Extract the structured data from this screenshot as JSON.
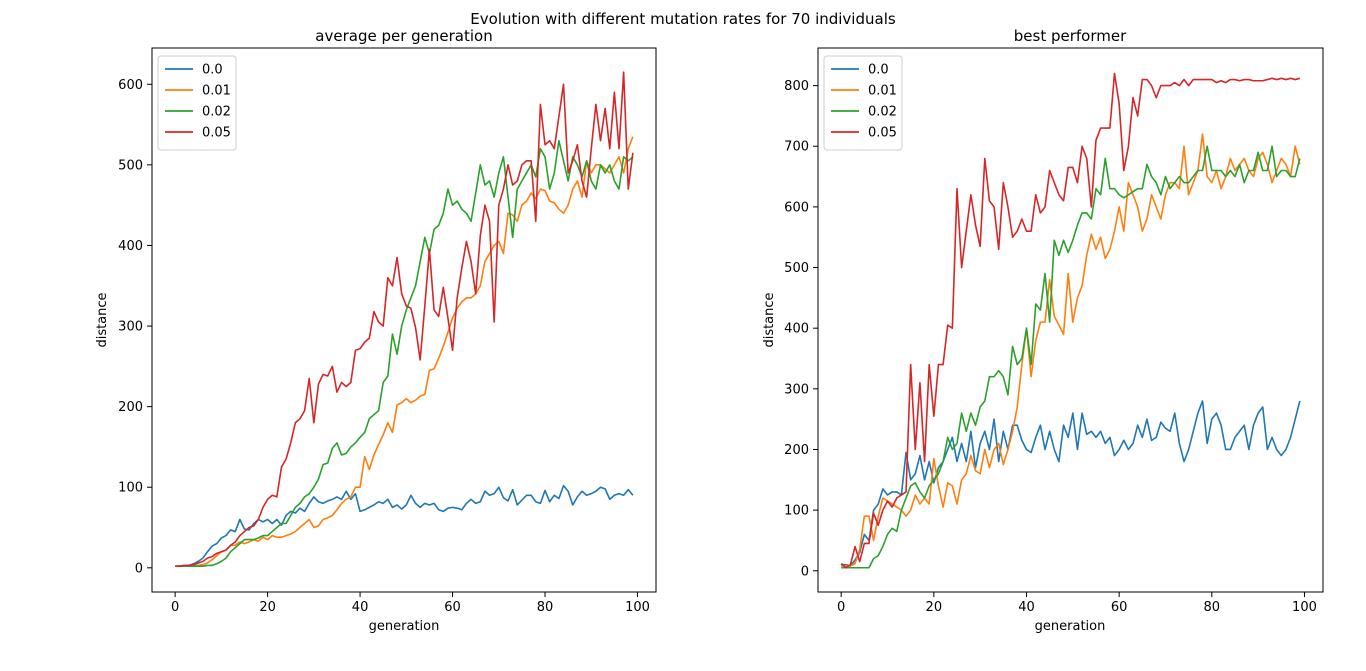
{
  "figure": {
    "suptitle": "Evolution with different mutation rates for 70 individuals",
    "colors": {
      "0.0": "#1f77b4",
      "0.01": "#ff7f0e",
      "0.02": "#2ca02c",
      "0.05": "#d62728"
    }
  },
  "chart_data": [
    {
      "type": "line",
      "title": "average per generation",
      "xlabel": "generation",
      "ylabel": "distance",
      "xlim": [
        -5,
        104
      ],
      "ylim": [
        -30,
        645
      ],
      "xticks": [
        0,
        20,
        40,
        60,
        80,
        100
      ],
      "yticks": [
        0,
        100,
        200,
        300,
        400,
        500,
        600
      ],
      "legend": "upper-left",
      "grid": false,
      "series": [
        {
          "name": "0.0",
          "color": "#1f77b4",
          "values": [
            2,
            2,
            3,
            3,
            5,
            8,
            12,
            20,
            27,
            30,
            37,
            40,
            47,
            45,
            60,
            48,
            47,
            55,
            60,
            57,
            60,
            55,
            60,
            53,
            65,
            70,
            68,
            74,
            70,
            80,
            88,
            82,
            80,
            83,
            85,
            88,
            85,
            95,
            85,
            92,
            70,
            72,
            75,
            78,
            82,
            80,
            85,
            75,
            78,
            73,
            78,
            90,
            80,
            75,
            80,
            78,
            80,
            72,
            70,
            74,
            75,
            74,
            72,
            80,
            85,
            80,
            82,
            95,
            90,
            92,
            100,
            87,
            83,
            97,
            78,
            84,
            90,
            90,
            82,
            80,
            96,
            82,
            90,
            86,
            102,
            95,
            78,
            88,
            95,
            90,
            92,
            95,
            100,
            98,
            85,
            90,
            92,
            90,
            97,
            90
          ]
        },
        {
          "name": "0.01",
          "color": "#ff7f0e",
          "values": [
            2,
            2,
            2,
            2,
            3,
            3,
            4,
            6,
            10,
            15,
            20,
            22,
            28,
            28,
            32,
            30,
            32,
            35,
            33,
            38,
            35,
            40,
            38,
            38,
            40,
            42,
            45,
            50,
            55,
            60,
            50,
            52,
            60,
            62,
            65,
            72,
            80,
            85,
            88,
            100,
            100,
            138,
            122,
            140,
            153,
            165,
            180,
            168,
            202,
            205,
            210,
            205,
            208,
            213,
            215,
            245,
            247,
            260,
            275,
            292,
            310,
            322,
            330,
            335,
            335,
            340,
            350,
            380,
            390,
            400,
            405,
            390,
            440,
            438,
            430,
            450,
            455,
            465,
            458,
            470,
            468,
            455,
            453,
            445,
            440,
            450,
            470,
            480,
            460,
            505,
            490,
            500,
            500,
            495,
            490,
            500,
            510,
            490,
            520,
            535
          ]
        },
        {
          "name": "0.02",
          "color": "#2ca02c",
          "values": [
            2,
            2,
            2,
            2,
            2,
            2,
            2,
            3,
            3,
            5,
            8,
            12,
            20,
            25,
            30,
            35,
            35,
            35,
            37,
            40,
            40,
            45,
            50,
            55,
            55,
            65,
            75,
            80,
            88,
            92,
            100,
            110,
            128,
            130,
            148,
            155,
            140,
            142,
            150,
            155,
            162,
            168,
            185,
            190,
            195,
            230,
            238,
            290,
            265,
            300,
            320,
            335,
            350,
            380,
            410,
            390,
            420,
            425,
            440,
            470,
            450,
            455,
            445,
            440,
            430,
            465,
            500,
            475,
            480,
            460,
            490,
            510,
            460,
            410,
            470,
            480,
            490,
            500,
            485,
            520,
            510,
            470,
            490,
            530,
            505,
            480,
            510,
            500,
            485,
            505,
            480,
            470,
            500,
            490,
            500,
            480,
            470,
            510,
            505,
            510
          ]
        },
        {
          "name": "0.05",
          "color": "#d62728",
          "values": [
            2,
            2,
            3,
            3,
            4,
            6,
            8,
            12,
            14,
            18,
            20,
            22,
            28,
            32,
            40,
            45,
            50,
            52,
            60,
            75,
            85,
            90,
            88,
            125,
            135,
            155,
            180,
            185,
            195,
            235,
            180,
            228,
            240,
            238,
            250,
            218,
            230,
            225,
            230,
            270,
            272,
            280,
            285,
            318,
            305,
            300,
            360,
            350,
            385,
            340,
            325,
            322,
            298,
            258,
            325,
            395,
            320,
            312,
            348,
            310,
            270,
            335,
            372,
            405,
            380,
            340,
            412,
            450,
            430,
            305,
            450,
            470,
            500,
            475,
            480,
            500,
            505,
            505,
            430,
            575,
            525,
            530,
            520,
            560,
            600,
            490,
            505,
            525,
            480,
            460,
            520,
            575,
            530,
            570,
            520,
            590,
            520,
            615,
            470,
            515
          ]
        }
      ]
    },
    {
      "type": "line",
      "title": "best performer",
      "xlabel": "generation",
      "ylabel": "distance",
      "xlim": [
        -5,
        104
      ],
      "ylim": [
        -35,
        862
      ],
      "xticks": [
        0,
        20,
        40,
        60,
        80,
        100
      ],
      "yticks": [
        0,
        100,
        200,
        300,
        400,
        500,
        600,
        700,
        800
      ],
      "legend": "upper-left",
      "grid": false,
      "series": [
        {
          "name": "0.0",
          "color": "#1f77b4",
          "values": [
            10,
            10,
            8,
            18,
            30,
            60,
            50,
            100,
            110,
            135,
            125,
            130,
            130,
            125,
            195,
            150,
            160,
            190,
            150,
            180,
            145,
            170,
            180,
            200,
            220,
            180,
            210,
            180,
            230,
            170,
            210,
            230,
            200,
            250,
            180,
            230,
            200,
            240,
            240,
            215,
            200,
            195,
            220,
            240,
            200,
            230,
            200,
            180,
            240,
            220,
            260,
            200,
            260,
            225,
            230,
            220,
            230,
            210,
            220,
            190,
            200,
            215,
            200,
            210,
            240,
            220,
            250,
            215,
            220,
            245,
            235,
            230,
            260,
            210,
            180,
            200,
            230,
            260,
            280,
            210,
            250,
            260,
            240,
            200,
            200,
            220,
            230,
            240,
            200,
            240,
            260,
            270,
            200,
            220,
            200,
            190,
            200,
            220,
            250,
            280
          ]
        },
        {
          "name": "0.01",
          "color": "#ff7f0e",
          "values": [
            8,
            8,
            8,
            12,
            35,
            90,
            90,
            50,
            90,
            120,
            115,
            110,
            105,
            100,
            90,
            100,
            125,
            110,
            120,
            110,
            185,
            140,
            105,
            145,
            140,
            110,
            150,
            160,
            190,
            165,
            160,
            200,
            170,
            200,
            210,
            175,
            200,
            230,
            270,
            340,
            400,
            320,
            380,
            410,
            410,
            480,
            420,
            405,
            390,
            490,
            410,
            450,
            470,
            520,
            555,
            530,
            550,
            515,
            530,
            560,
            600,
            560,
            640,
            620,
            600,
            560,
            580,
            620,
            600,
            580,
            620,
            640,
            640,
            630,
            700,
            620,
            640,
            660,
            720,
            650,
            640,
            660,
            630,
            650,
            680,
            660,
            670,
            680,
            660,
            650,
            680,
            690,
            670,
            640,
            660,
            680,
            670,
            650,
            700,
            670
          ]
        },
        {
          "name": "0.02",
          "color": "#2ca02c",
          "values": [
            5,
            5,
            5,
            5,
            5,
            5,
            5,
            20,
            25,
            40,
            60,
            70,
            65,
            100,
            120,
            140,
            145,
            130,
            120,
            140,
            150,
            160,
            180,
            220,
            200,
            210,
            260,
            230,
            260,
            240,
            270,
            280,
            320,
            320,
            330,
            320,
            290,
            370,
            340,
            350,
            400,
            340,
            440,
            430,
            490,
            410,
            545,
            520,
            545,
            525,
            545,
            570,
            590,
            590,
            580,
            630,
            620,
            680,
            630,
            630,
            620,
            615,
            620,
            625,
            630,
            630,
            670,
            650,
            640,
            620,
            650,
            630,
            640,
            650,
            640,
            640,
            650,
            660,
            660,
            700,
            660,
            660,
            660,
            650,
            660,
            650,
            670,
            640,
            660,
            660,
            690,
            660,
            660,
            700,
            650,
            660,
            660,
            650,
            650,
            680
          ]
        },
        {
          "name": "0.05",
          "color": "#d62728",
          "values": [
            12,
            5,
            10,
            40,
            15,
            45,
            45,
            95,
            75,
            100,
            115,
            105,
            120,
            125,
            130,
            340,
            200,
            310,
            180,
            340,
            255,
            340,
            340,
            405,
            400,
            630,
            500,
            560,
            620,
            570,
            535,
            680,
            610,
            600,
            530,
            640,
            600,
            550,
            560,
            580,
            560,
            560,
            620,
            590,
            600,
            660,
            640,
            620,
            610,
            665,
            665,
            640,
            700,
            680,
            600,
            710,
            730,
            730,
            730,
            820,
            770,
            660,
            700,
            780,
            750,
            810,
            810,
            800,
            780,
            800,
            800,
            800,
            805,
            800,
            810,
            800,
            810,
            810,
            810,
            810,
            810,
            805,
            808,
            805,
            810,
            810,
            808,
            810,
            810,
            808,
            808,
            808,
            810,
            812,
            810,
            812,
            810,
            812,
            810,
            812
          ]
        }
      ]
    }
  ]
}
